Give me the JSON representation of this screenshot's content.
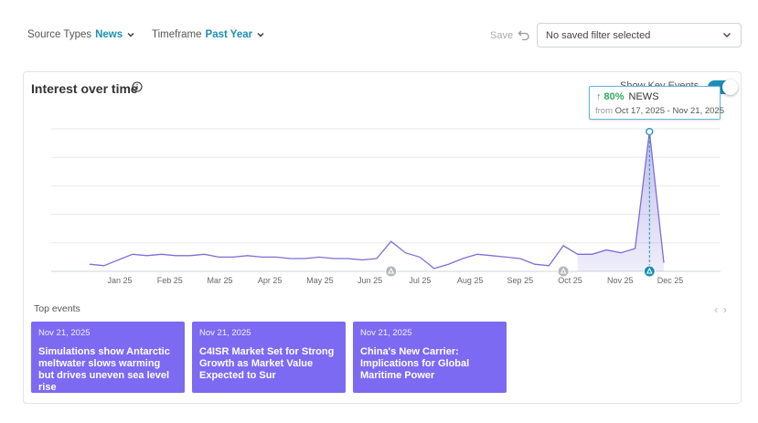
{
  "filters": {
    "source_types": {
      "label": "Source Types",
      "value": "News"
    },
    "timeframe": {
      "label": "Timeframe",
      "value": "Past Year"
    },
    "save_label": "Save",
    "saved_filter_placeholder": "No saved filter selected"
  },
  "card": {
    "title": "Interest over time",
    "key_events_label": "Show Key Events",
    "key_events_enabled": true
  },
  "tooltip": {
    "change_pct": "80%",
    "label": "NEWS",
    "from_label": "from",
    "date_range": "Oct 17, 2025 - Nov 21, 2025"
  },
  "chart_data": {
    "type": "line",
    "x_ticks": [
      "Jan 25",
      "Feb 25",
      "Mar 25",
      "Apr 25",
      "May 25",
      "Jun 25",
      "Jul 25",
      "Aug 25",
      "Sep 25",
      "Oct 25",
      "Nov 25",
      "Dec 25"
    ],
    "series": [
      {
        "name": "NEWS",
        "color": "#7c6fd6",
        "values": [
          5,
          4,
          8,
          12,
          11,
          12,
          11,
          11,
          12,
          10,
          10,
          11,
          10,
          10,
          9,
          9,
          10,
          9,
          9,
          8,
          9,
          21,
          13,
          10,
          2,
          5,
          9,
          12,
          11,
          10,
          9,
          5,
          4,
          18,
          12,
          12,
          15,
          13,
          16,
          98,
          6
        ]
      }
    ],
    "highlight_range": {
      "start_index": 34,
      "end_index": 40
    },
    "event_marker_indices": [
      21,
      33,
      39
    ],
    "ylim": [
      0,
      100
    ],
    "grid": true
  },
  "top_events": {
    "label": "Top events",
    "items": [
      {
        "date": "Nov 21, 2025",
        "headline": "Simulations show Antarctic meltwater slows warming but drives uneven sea level rise"
      },
      {
        "date": "Nov 21, 2025",
        "headline": "C4ISR Market Set for Strong Growth as Market Value Expected to Sur"
      },
      {
        "date": "Nov 21, 2025",
        "headline": "China's New Carrier: Implications for Global Maritime Power"
      }
    ]
  }
}
